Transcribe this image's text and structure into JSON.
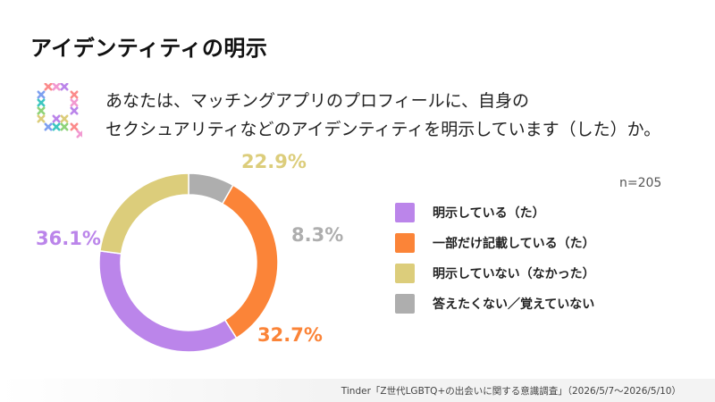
{
  "title": "アイデンティティの明示",
  "question": {
    "line1": "あなたは、マッチングアプリのプロフィールに、自身の",
    "line2": "セクシュアリティなどのアイデンティティを明示しています（した）か。"
  },
  "sample_size": "n=205",
  "source": "Tinder「Z世代LGBTQ+の出会いに関する意識調査」（2026/5/7〜2026/5/10）",
  "chart_data": {
    "type": "pie",
    "donut": true,
    "unit": "%",
    "slices": [
      {
        "label": "明示している（た）",
        "value": 36.1,
        "display": "36.1%",
        "color": "#bb85ea"
      },
      {
        "label": "一部だけ記載している（た）",
        "value": 32.7,
        "display": "32.7%",
        "color": "#fb8438"
      },
      {
        "label": "明示していない（なかった）",
        "value": 22.9,
        "display": "22.9%",
        "color": "#dccd7b"
      },
      {
        "label": "答えたくない／覚えていない",
        "value": 8.3,
        "display": "8.3%",
        "color": "#aeaeae"
      }
    ],
    "legend_position": "right"
  }
}
